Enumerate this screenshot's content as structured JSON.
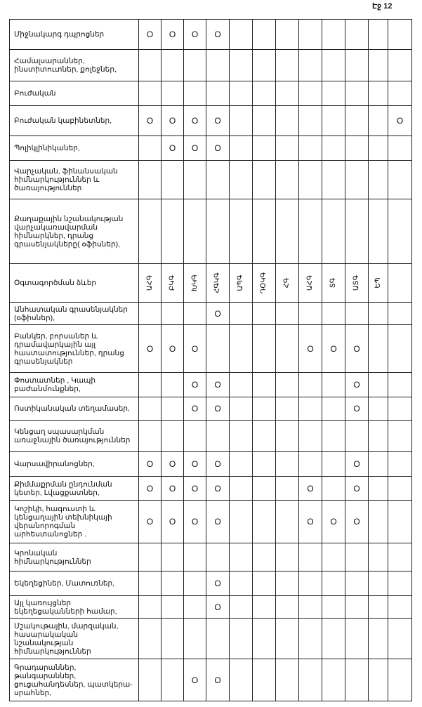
{
  "page_label": "Էջ 12",
  "columns": [
    "ԱՀԳ",
    "ԲԿԳ",
    "ԽԿԳ",
    "ՀԳԿԳ",
    "ԱՊԳ",
    "ԴՕԿԳ",
    "ՀԳ",
    "ԱՀԳ",
    "ՏԳ",
    "ԱՏԳ",
    "ԵՊ",
    ""
  ],
  "header_row_label": "Օգտագործման ձևեր",
  "mark_symbol": "O",
  "rows_before_header": [
    {
      "label": "Միջնակարգ դպրոցներ",
      "marks": [
        1,
        1,
        1,
        1,
        0,
        0,
        0,
        0,
        0,
        0,
        0,
        0
      ]
    },
    {
      "label": "Համալսարաններ, ինստիտուտներ, քոլեջներ,",
      "marks": [
        0,
        0,
        0,
        0,
        0,
        0,
        0,
        0,
        0,
        0,
        0,
        0
      ]
    },
    {
      "label": "Բուժական",
      "marks": [
        0,
        0,
        0,
        0,
        0,
        0,
        0,
        0,
        0,
        0,
        0,
        0
      ]
    },
    {
      "label": "Բուժական կաբինետներ,",
      "marks": [
        1,
        1,
        1,
        1,
        0,
        0,
        0,
        0,
        0,
        0,
        0,
        1
      ]
    },
    {
      "label": "Պոլիկլինիկաներ,",
      "marks": [
        0,
        1,
        1,
        1,
        0,
        0,
        0,
        0,
        0,
        0,
        0,
        0
      ]
    },
    {
      "label": "Վարչական, ֆինանսական հիմնարկություններ և ծառայություններ",
      "marks": [
        0,
        0,
        0,
        0,
        0,
        0,
        0,
        0,
        0,
        0,
        0,
        0
      ]
    },
    {
      "label": "Քաղաքային նշանակության վարչակառավարման հիմնարկներ, դրանց գրասենյակները( օֆիսներ),",
      "marks": [
        0,
        0,
        0,
        0,
        0,
        0,
        0,
        0,
        0,
        0,
        0,
        0
      ]
    }
  ],
  "rows_after_header": [
    {
      "label": "Անհատական գրասենյակներ (օֆիսներ),",
      "marks": [
        0,
        0,
        0,
        1,
        0,
        0,
        0,
        0,
        0,
        0,
        0,
        0
      ]
    },
    {
      "label": "Բանկեր, բորսաներ և դրամավարկային այլ հաստատություններ, դրանց գրասենյակներ",
      "marks": [
        1,
        1,
        1,
        0,
        0,
        0,
        0,
        1,
        1,
        1,
        0,
        0
      ]
    },
    {
      "label": "Փոստատներ , Կապի բաժանմունքներ,",
      "marks": [
        0,
        0,
        1,
        1,
        0,
        0,
        0,
        0,
        0,
        1,
        0,
        0
      ]
    },
    {
      "label": "Ոստիկանական տեղամասեր,",
      "marks": [
        0,
        0,
        1,
        1,
        0,
        0,
        0,
        0,
        0,
        1,
        0,
        0
      ]
    },
    {
      "label": "Կենցաղ սպասարկման առաջնային ծառայություններ",
      "marks": [
        0,
        0,
        0,
        0,
        0,
        0,
        0,
        0,
        0,
        0,
        0,
        0
      ]
    },
    {
      "label": "Վարսավիրանոցներ,",
      "marks": [
        1,
        1,
        1,
        1,
        0,
        0,
        0,
        0,
        0,
        1,
        0,
        0
      ]
    },
    {
      "label": "Քիմմաքրման ընդունման կետեր, Լվացքատներ,",
      "marks": [
        1,
        1,
        1,
        1,
        0,
        0,
        0,
        1,
        0,
        1,
        0,
        0
      ]
    },
    {
      "label": "Կոշիկի, հագուստի և կենցաղային տեխնիկայի վերանորոգման արհեստանոցներ .",
      "marks": [
        1,
        1,
        1,
        1,
        0,
        0,
        0,
        1,
        1,
        1,
        0,
        0
      ]
    },
    {
      "label": "Կրոնական հիմնարկություններ",
      "marks": [
        0,
        0,
        0,
        0,
        0,
        0,
        0,
        0,
        0,
        0,
        0,
        0
      ]
    },
    {
      "label": "Եկեղեցիներ, Մատուռներ,",
      "marks": [
        0,
        0,
        0,
        1,
        0,
        0,
        0,
        0,
        0,
        0,
        0,
        0
      ]
    },
    {
      "label": "Այլ կառույցներ եկեղեցականների համար,",
      "marks": [
        0,
        0,
        0,
        1,
        0,
        0,
        0,
        0,
        0,
        0,
        0,
        0
      ]
    },
    {
      "label": "Մշակութային, մարզական, հասարակական նշանակության հիմնարկություններ",
      "marks": [
        0,
        0,
        0,
        0,
        0,
        0,
        0,
        0,
        0,
        0,
        0,
        0
      ]
    },
    {
      "label": "Գրադարաններ, թանգարաններ, ցուցահանդեսներ, պատկերա-սրահներ,",
      "marks": [
        0,
        0,
        1,
        1,
        0,
        0,
        0,
        0,
        0,
        0,
        0,
        0
      ]
    }
  ]
}
